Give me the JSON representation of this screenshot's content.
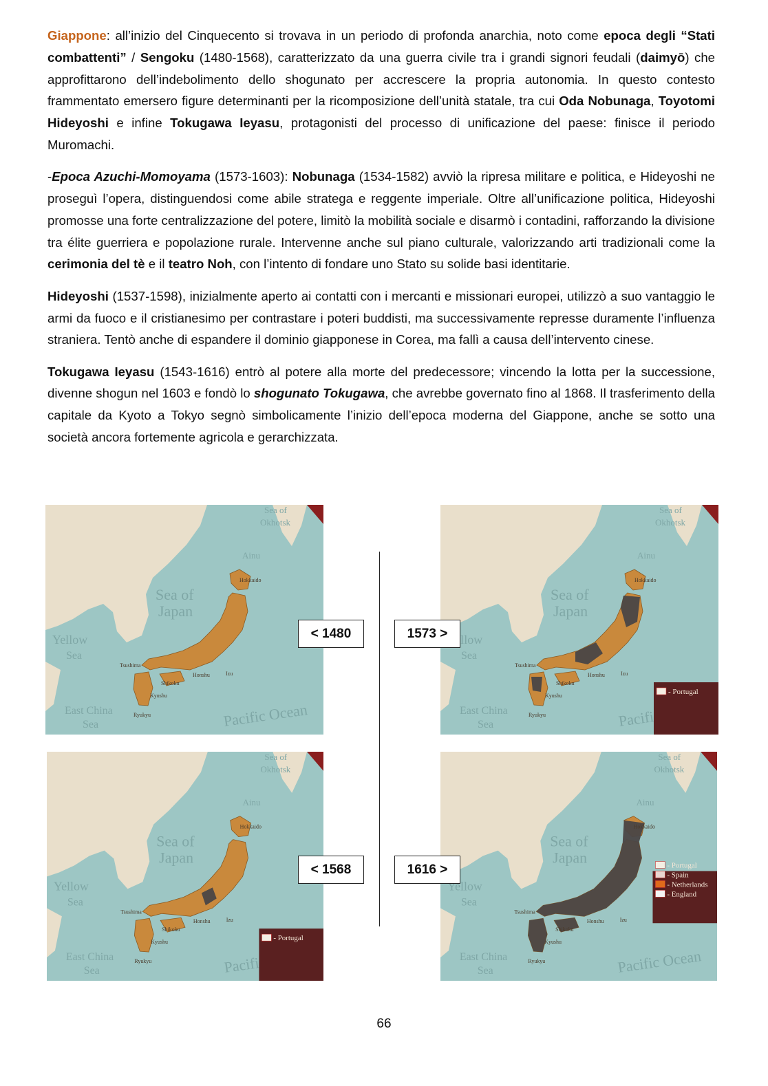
{
  "paragraphs": {
    "p1": {
      "lead": "Giappone",
      "t1": ": all’inizio del Cinquecento si trovava in un periodo di profonda anarchia, noto come ",
      "b1": "epoca degli “Stati combattenti”",
      "t2": " / ",
      "b2": "Sengoku",
      "t3": " (1480-1568), caratterizzato da una guerra civile tra i grandi signori feudali (",
      "b3": "daimyō",
      "t4": ") che approfittarono dell’indebolimento dello shogunato per accrescere la propria autonomia. In questo contesto frammentato emersero figure determinanti per la ricomposizione dell’unità statale, tra cui ",
      "b4": "Oda Nobunaga",
      "t5": ", ",
      "b5": "Toyotomi Hideyoshi",
      "t6": " e infine ",
      "b6": "Tokugawa Ieyasu",
      "t7": ", protagonisti del processo di unificazione del paese: finisce il periodo Muromachi."
    },
    "p2": {
      "t0": "-",
      "bi1": "Epoca Azuchi-Momoyama",
      "t1": " (1573-1603): ",
      "b1": "Nobunaga",
      "t2": " (1534-1582) avviò la ripresa militare e politica, e Hideyoshi ne proseguì l’opera, distinguendosi come abile stratega e reggente imperiale. Oltre all’unificazione politica, Hideyoshi promosse una forte centralizzazione del potere, limitò la mobilità sociale e disarmò i contadini, rafforzando la divisione tra élite guerriera e popolazione rurale. Intervenne anche sul piano culturale, valorizzando arti tradizionali come la ",
      "b2": "cerimonia del tè",
      "t3": " e il ",
      "b3": "teatro Noh",
      "t4": ", con l’intento di fondare uno Stato su solide basi identitarie."
    },
    "p3": {
      "b1": "Hideyoshi",
      "t1": " (1537-1598), inizialmente aperto ai contatti con i mercanti e missionari europei, utilizzò a suo vantaggio le armi da fuoco e il cristianesimo per contrastare i poteri buddisti, ma successivamente represse duramente l’influenza straniera. Tentò anche di espandere il dominio giapponese in Corea, ma fallì a causa dell’intervento cinese."
    },
    "p4": {
      "b1": "Tokugawa Ieyasu",
      "t1": " (1543-1616) entrò al potere alla morte del predecessore; vincendo la lotta per la successione, divenne shogun nel 1603 e fondò lo ",
      "bi1": "shogunato Tokugawa",
      "t2": ", che avrebbe governato fino al 1868. Il trasferimento della capitale da Kyoto a Tokyo segnò simbolicamente l’inizio dell’epoca moderna del Giappone, anche se sotto una società ancora fortemente agricola e gerarchizzata."
    }
  },
  "map_labels": {
    "okhotsk1": "Sea of",
    "okhotsk2": "Okhotsk",
    "ainu": "Ainu",
    "hokkaido": "Hokkaido",
    "japan1": "Sea of",
    "japan2": "Japan",
    "yellow1": "Yellow",
    "yellow2": "Sea",
    "ecs1": "East China",
    "ecs2": "Sea",
    "pacific": "Pacific Ocean",
    "tsushima": "Tsushima",
    "shikoku": "Shikoku",
    "honshu": "Honshu",
    "izu": "Izu",
    "kyushu": "Kyushu",
    "ryukyu": "Ryukyu"
  },
  "maps": [
    {
      "year": "1480",
      "legend": []
    },
    {
      "year": "1573",
      "legend": [
        "- Portugal"
      ]
    },
    {
      "year": "1568",
      "legend": [
        "- Portugal"
      ]
    },
    {
      "year": "1616",
      "legend": [
        "- Portugal",
        "- Spain",
        "- Netherlands",
        "- England"
      ]
    }
  ],
  "nav": {
    "prev_1480": "< 1480",
    "next_1573": "1573 >",
    "prev_1568": "< 1568",
    "next_1616": "1616 >"
  },
  "colors": {
    "sea": "#9dc6c4",
    "land": "#e9dfcb",
    "daimyo": "#c9893c",
    "unified": "#4a4646",
    "legend_bg": "#5a2020",
    "accent": "#c5641c"
  },
  "page_number": "66"
}
